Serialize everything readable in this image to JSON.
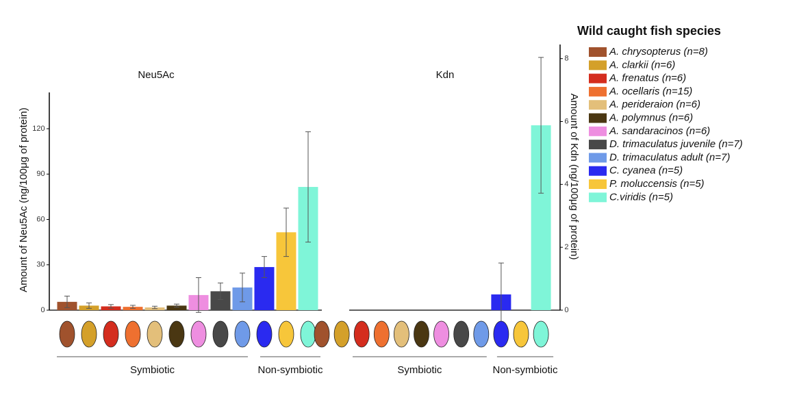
{
  "chart_data": {
    "type": "bar",
    "legend_title": "Wild caught fish species",
    "categories": [
      "A. chrysopterus (n=8)",
      "A. clarkii (n=6)",
      "A. frenatus (n=6)",
      "A. ocellaris (n=15)",
      "A. perideraion (n=6)",
      "A. polymnus (n=6)",
      "A. sandaracinos (n=6)",
      "D. trimaculatus juvenile (n=7)",
      "D. trimaculatus adult (n=7)",
      "C. cyanea (n=5)",
      "P. moluccensis (n=5)",
      "C.viridis (n=5)"
    ],
    "colors": [
      "#a0522d",
      "#d4a02a",
      "#d42d1e",
      "#ee7030",
      "#e3bf7a",
      "#4a3712",
      "#ee8ee0",
      "#484848",
      "#6f9ae8",
      "#2a2af0",
      "#f7c63a",
      "#7ff5d8"
    ],
    "panels": [
      {
        "title": "Neu5Ac",
        "y_label": "Amount of Neu5Ac (ng/100μg of protein)",
        "ylim": [
          0,
          144
        ],
        "yticks": [
          0,
          30,
          60,
          90,
          120
        ],
        "values": [
          5.5,
          3,
          2.5,
          2.2,
          1.8,
          3,
          10,
          12.5,
          15,
          28.5,
          51.5,
          81.5
        ],
        "errors": [
          3.8,
          1.8,
          1.2,
          1,
          0.8,
          1,
          11.5,
          5.5,
          9.5,
          7,
          16,
          36.5
        ],
        "groups": [
          "Symbiotic",
          "Non-symbiotic"
        ]
      },
      {
        "title": "Kdn",
        "y_label": "Amount of Kdn (ng/100μg of protein)",
        "ylim": [
          0,
          8.45
        ],
        "yticks": [
          0,
          2,
          4,
          6,
          8
        ],
        "values": [
          0,
          0,
          0,
          0,
          0,
          0,
          0,
          0,
          0,
          0.5,
          0,
          5.88
        ],
        "errors": [
          0,
          0,
          0,
          0,
          0,
          0,
          0,
          0,
          0,
          1.0,
          0,
          2.16
        ],
        "groups": [
          "Symbiotic",
          "Non-symbiotic"
        ]
      }
    ]
  }
}
